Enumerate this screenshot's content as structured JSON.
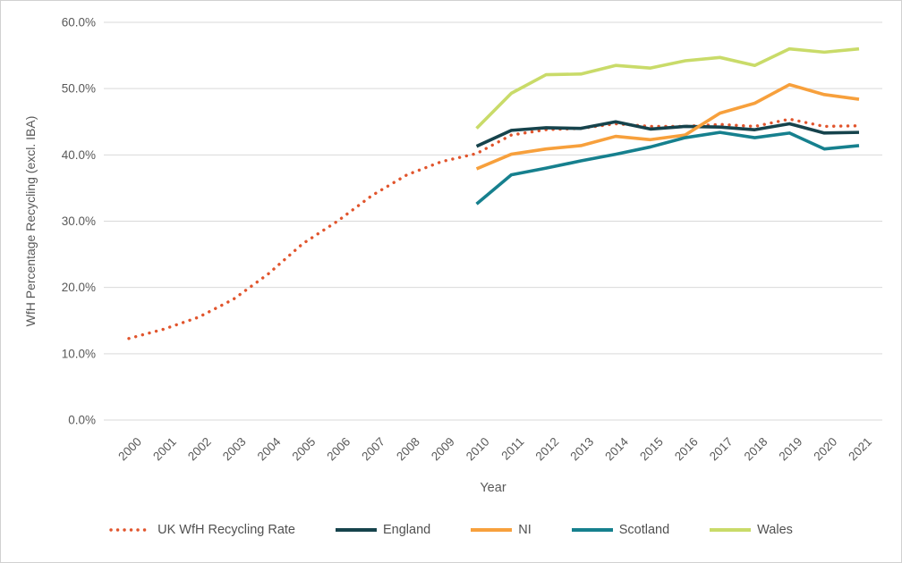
{
  "figure": {
    "background": "#ffffff",
    "border_color": "#d1d1d1",
    "text_color": "#595959",
    "gridline_color": "#d9d9d9"
  },
  "chart_data": {
    "type": "line",
    "title": "",
    "xlabel": "Year",
    "ylabel": "WfH Percentage Recycling (excl. IBA)",
    "x": [
      2000,
      2001,
      2002,
      2003,
      2004,
      2005,
      2006,
      2007,
      2008,
      2009,
      2010,
      2011,
      2012,
      2013,
      2014,
      2015,
      2016,
      2017,
      2018,
      2019,
      2020,
      2021
    ],
    "ylim": [
      0,
      60
    ],
    "yticks": [
      0,
      10,
      20,
      30,
      40,
      50,
      60
    ],
    "ytick_labels": [
      "0.0%",
      "10.0%",
      "20.0%",
      "30.0%",
      "40.0%",
      "50.0%",
      "60.0%"
    ],
    "grid": "horizontal",
    "legend_position": "bottom",
    "series": [
      {
        "name": "UK WfH Recycling Rate",
        "color": "#e1552d",
        "style": "dotted",
        "values": [
          12.3,
          13.7,
          15.5,
          18.2,
          22.0,
          26.6,
          30.0,
          33.9,
          37.0,
          39.0,
          40.2,
          43.0,
          43.8,
          44.0,
          44.7,
          44.3,
          44.3,
          44.6,
          44.3,
          45.4,
          44.3,
          44.4
        ]
      },
      {
        "name": "England",
        "color": "#16434c",
        "style": "solid",
        "values": [
          null,
          null,
          null,
          null,
          null,
          null,
          null,
          null,
          null,
          null,
          41.3,
          43.7,
          44.1,
          44.0,
          45.0,
          43.9,
          44.3,
          44.2,
          43.8,
          44.7,
          43.3,
          43.4
        ]
      },
      {
        "name": "NI",
        "color": "#f7a03c",
        "style": "solid",
        "values": [
          null,
          null,
          null,
          null,
          null,
          null,
          null,
          null,
          null,
          null,
          37.9,
          40.1,
          40.9,
          41.4,
          42.8,
          42.3,
          43.0,
          46.3,
          47.8,
          50.6,
          49.1,
          48.4
        ]
      },
      {
        "name": "Scotland",
        "color": "#16808e",
        "style": "solid",
        "values": [
          null,
          null,
          null,
          null,
          null,
          null,
          null,
          null,
          null,
          null,
          32.6,
          37.0,
          38.0,
          39.1,
          40.1,
          41.2,
          42.6,
          43.4,
          42.6,
          43.3,
          40.9,
          41.4
        ]
      },
      {
        "name": "Wales",
        "color": "#c9db69",
        "style": "solid",
        "values": [
          null,
          null,
          null,
          null,
          null,
          null,
          null,
          null,
          null,
          null,
          44.0,
          49.3,
          52.1,
          52.2,
          53.5,
          53.1,
          54.2,
          54.7,
          53.5,
          56.0,
          55.5,
          56.0
        ]
      }
    ]
  }
}
